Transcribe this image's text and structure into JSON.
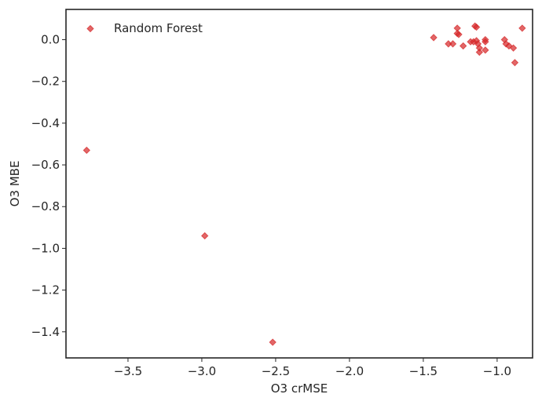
{
  "chart_data": {
    "type": "scatter",
    "title": "",
    "xlabel": "O3 crMSE",
    "ylabel": "O3 MBE",
    "xlim": [
      -3.92,
      -0.76
    ],
    "ylim": [
      -1.525,
      0.145
    ],
    "xticks": [
      {
        "value": -3.5,
        "label": "−3.5"
      },
      {
        "value": -3.0,
        "label": "−3.0"
      },
      {
        "value": -2.5,
        "label": "−2.5"
      },
      {
        "value": -2.0,
        "label": "−2.0"
      },
      {
        "value": -1.5,
        "label": "−1.5"
      },
      {
        "value": -1.0,
        "label": "−1.0"
      }
    ],
    "yticks": [
      {
        "value": 0.0,
        "label": "0.0"
      },
      {
        "value": -0.2,
        "label": "−0.2"
      },
      {
        "value": -0.4,
        "label": "−0.4"
      },
      {
        "value": -0.6,
        "label": "−0.6"
      },
      {
        "value": -0.8,
        "label": "−0.8"
      },
      {
        "value": -1.0,
        "label": "−1.0"
      },
      {
        "value": -1.2,
        "label": "−1.2"
      },
      {
        "value": -1.4,
        "label": "−1.4"
      }
    ],
    "grid": false,
    "legend_position": "top-left",
    "series": [
      {
        "name": "Random Forest",
        "marker": "diamond",
        "color": "#d62728",
        "points": [
          {
            "x": -3.78,
            "y": -0.53
          },
          {
            "x": -2.98,
            "y": -0.94
          },
          {
            "x": -2.52,
            "y": -1.45
          },
          {
            "x": -1.43,
            "y": 0.01
          },
          {
            "x": -1.33,
            "y": -0.02
          },
          {
            "x": -1.3,
            "y": -0.02
          },
          {
            "x": -1.27,
            "y": 0.055
          },
          {
            "x": -1.27,
            "y": 0.03
          },
          {
            "x": -1.26,
            "y": 0.025
          },
          {
            "x": -1.23,
            "y": -0.03
          },
          {
            "x": -1.18,
            "y": -0.01
          },
          {
            "x": -1.16,
            "y": -0.01
          },
          {
            "x": -1.15,
            "y": 0.065
          },
          {
            "x": -1.14,
            "y": 0.06
          },
          {
            "x": -1.14,
            "y": -0.005
          },
          {
            "x": -1.13,
            "y": -0.02
          },
          {
            "x": -1.12,
            "y": -0.04
          },
          {
            "x": -1.12,
            "y": -0.06
          },
          {
            "x": -1.08,
            "y": 0.0
          },
          {
            "x": -1.08,
            "y": -0.01
          },
          {
            "x": -1.08,
            "y": -0.05
          },
          {
            "x": -0.95,
            "y": 0.0
          },
          {
            "x": -0.94,
            "y": -0.02
          },
          {
            "x": -0.92,
            "y": -0.03
          },
          {
            "x": -0.89,
            "y": -0.04
          },
          {
            "x": -0.88,
            "y": -0.11
          },
          {
            "x": -0.83,
            "y": 0.055
          }
        ]
      }
    ]
  }
}
